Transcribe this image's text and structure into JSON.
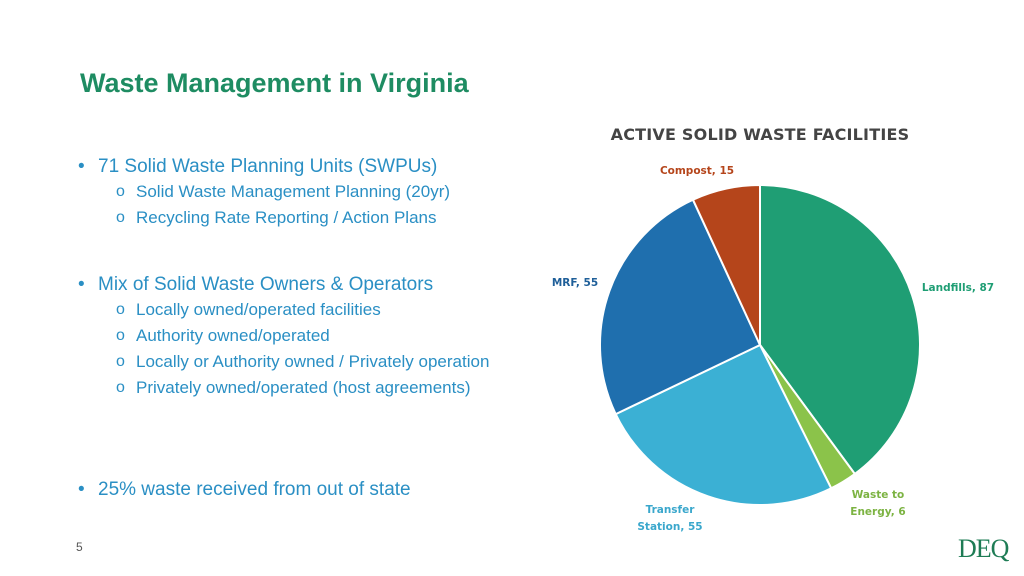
{
  "slide": {
    "title": "Waste Management in Virginia",
    "page_number": "5",
    "logo_text": "DEQ"
  },
  "bullets": [
    {
      "text": "71 Solid Waste Planning Units (SWPUs)",
      "subs": [
        "Solid Waste Management Planning (20yr)",
        "Recycling Rate Reporting / Action Plans"
      ]
    },
    {
      "text": "Mix of Solid Waste Owners & Operators",
      "subs": [
        "Locally owned/operated facilities",
        "Authority owned/operated",
        "Locally or Authority owned / Privately operation",
        "Privately owned/operated (host agreements)"
      ]
    },
    {
      "text": "25% waste received from out of state",
      "subs": []
    }
  ],
  "colors": {
    "title": "#1e8c62",
    "bullet_text": "#2a8fc4"
  },
  "chart_data": {
    "type": "pie",
    "title": "ACTIVE SOLID WASTE FACILITIES",
    "slices": [
      {
        "name": "Landfills",
        "value": 87,
        "label": "Landfills, 87",
        "color": "#1f9e74",
        "label_color": "#1f9e74"
      },
      {
        "name": "Waste to Energy",
        "value": 6,
        "label": "Waste to Energy, 6",
        "color": "#8bc34a",
        "label_color": "#7cb342"
      },
      {
        "name": "Transfer Station",
        "value": 55,
        "label": "Transfer Station, 55",
        "color": "#3bb0d4",
        "label_color": "#3aa7cc"
      },
      {
        "name": "MRF",
        "value": 55,
        "label": "MRF, 55",
        "color": "#1f6fae",
        "label_color": "#1f5f99"
      },
      {
        "name": "Compost",
        "value": 15,
        "label": "Compost, 15",
        "color": "#b5451b",
        "label_color": "#b5451b"
      }
    ],
    "start_angle": "12 o'clock",
    "direction": "clockwise",
    "legend": "none"
  }
}
